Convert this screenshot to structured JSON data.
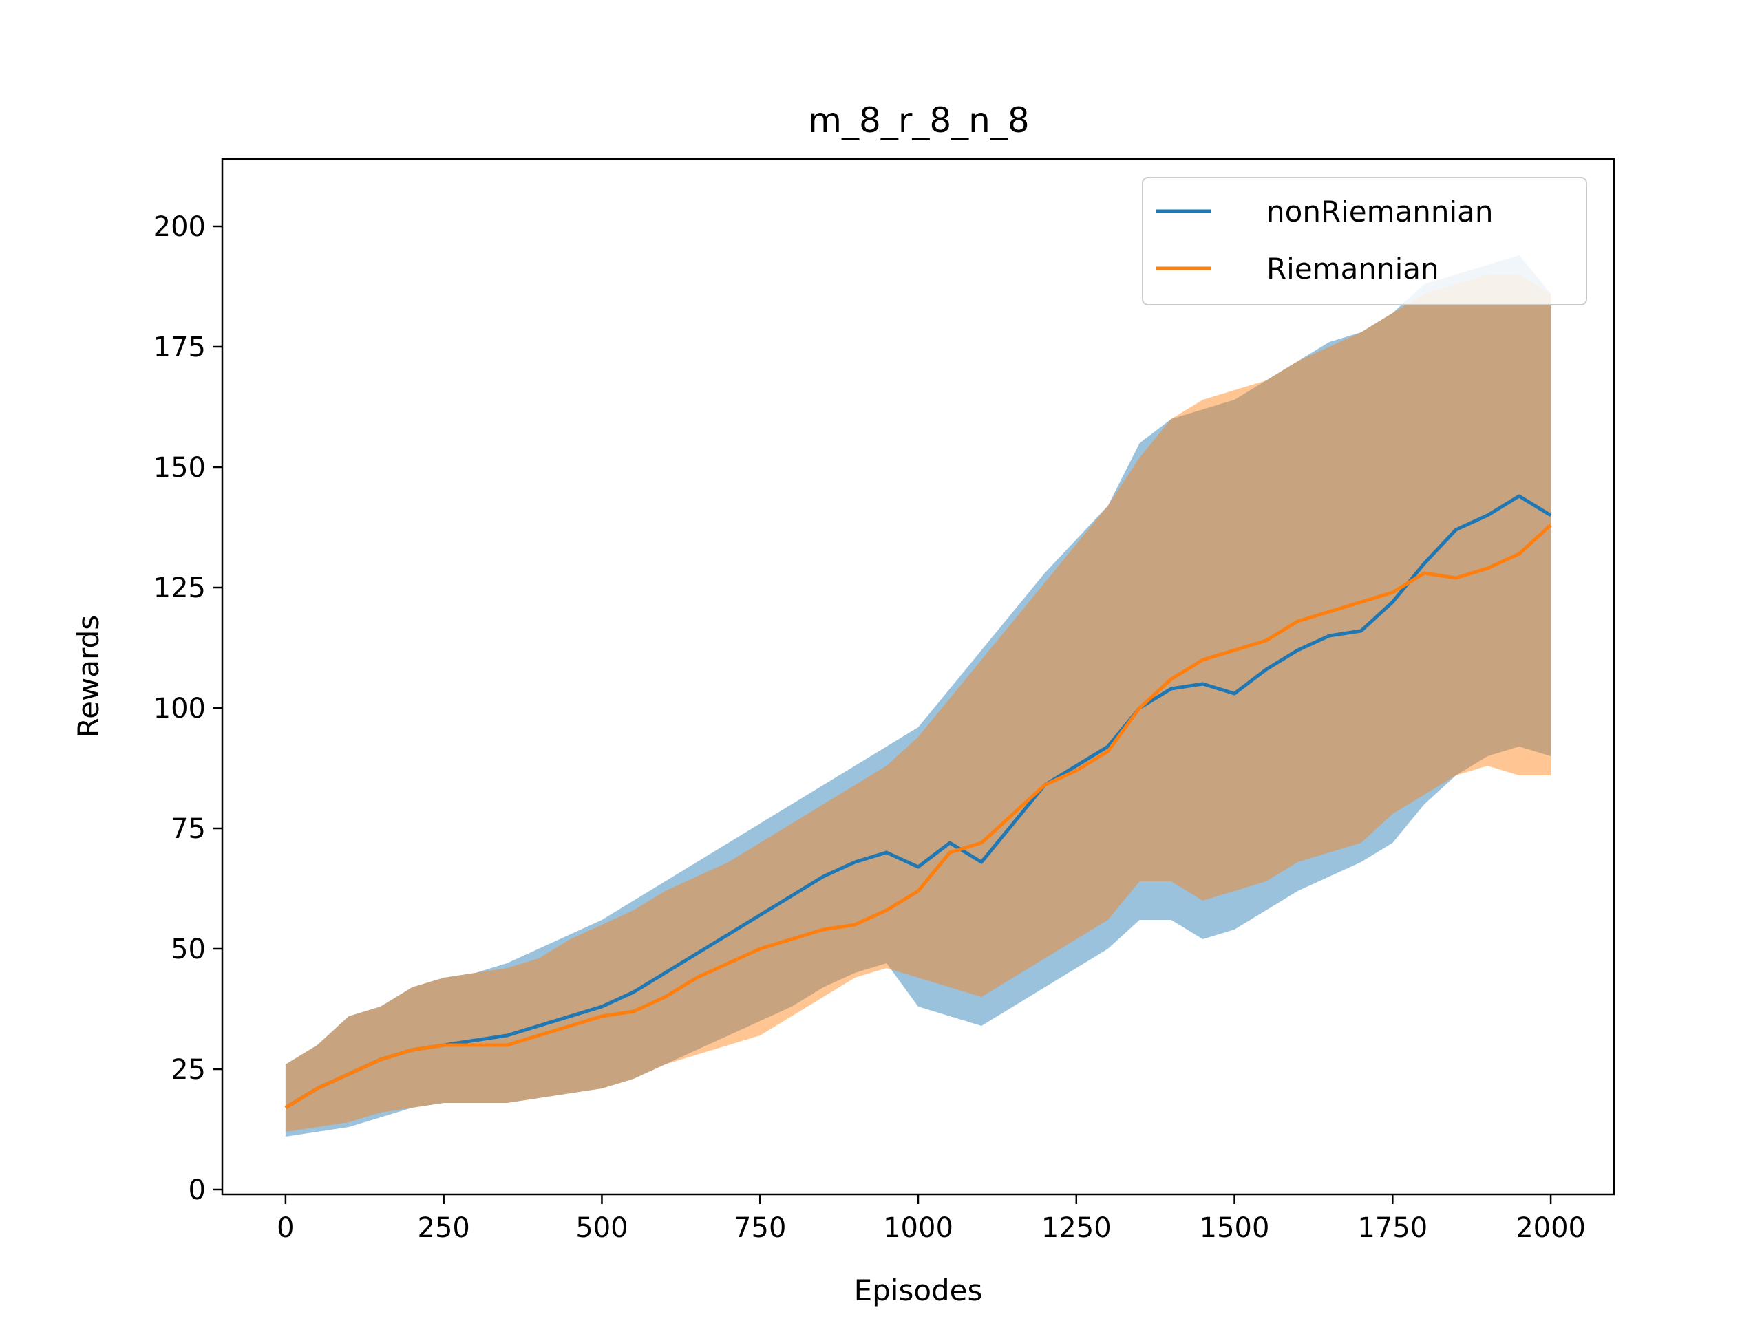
{
  "chart_data": {
    "type": "line",
    "title": "m_8_r_8_n_8",
    "xlabel": "Episodes",
    "ylabel": "Rewards",
    "xlim": [
      -100,
      2100
    ],
    "ylim": [
      -1,
      214
    ],
    "xticks": [
      0,
      250,
      500,
      750,
      1000,
      1250,
      1500,
      1750,
      2000
    ],
    "yticks": [
      0,
      25,
      50,
      75,
      100,
      125,
      150,
      175,
      200
    ],
    "grid": false,
    "legend_position": "top-right",
    "series": [
      {
        "name": "nonRiemannian",
        "color": "#1f77b4",
        "band_color": "#1f77b4",
        "x": [
          0,
          50,
          100,
          150,
          200,
          250,
          300,
          350,
          400,
          450,
          500,
          550,
          600,
          650,
          700,
          750,
          800,
          850,
          900,
          950,
          1000,
          1050,
          1100,
          1150,
          1200,
          1250,
          1300,
          1350,
          1400,
          1450,
          1500,
          1550,
          1600,
          1650,
          1700,
          1750,
          1800,
          1850,
          1900,
          1950,
          2000
        ],
        "mean": [
          17,
          21,
          24,
          27,
          29,
          30,
          31,
          32,
          34,
          36,
          38,
          41,
          45,
          49,
          53,
          57,
          61,
          65,
          68,
          70,
          67,
          72,
          68,
          76,
          84,
          88,
          92,
          100,
          104,
          105,
          103,
          108,
          112,
          115,
          116,
          122,
          130,
          137,
          140,
          144,
          140
        ],
        "upper": [
          26,
          30,
          36,
          38,
          42,
          44,
          45,
          47,
          50,
          53,
          56,
          60,
          64,
          68,
          72,
          76,
          80,
          84,
          88,
          92,
          96,
          104,
          112,
          120,
          128,
          135,
          142,
          155,
          160,
          162,
          164,
          168,
          172,
          176,
          178,
          182,
          188,
          190,
          192,
          194,
          186
        ],
        "lower": [
          11,
          12,
          13,
          15,
          17,
          18,
          18,
          18,
          19,
          20,
          21,
          23,
          26,
          29,
          32,
          35,
          38,
          42,
          45,
          47,
          38,
          36,
          34,
          38,
          42,
          46,
          50,
          56,
          56,
          52,
          54,
          58,
          62,
          65,
          68,
          72,
          80,
          86,
          90,
          92,
          90
        ]
      },
      {
        "name": "Riemannian",
        "color": "#ff7f0e",
        "band_color": "#ff7f0e",
        "x": [
          0,
          50,
          100,
          150,
          200,
          250,
          300,
          350,
          400,
          450,
          500,
          550,
          600,
          650,
          700,
          750,
          800,
          850,
          900,
          950,
          1000,
          1050,
          1100,
          1150,
          1200,
          1250,
          1300,
          1350,
          1400,
          1450,
          1500,
          1550,
          1600,
          1650,
          1700,
          1750,
          1800,
          1850,
          1900,
          1950,
          2000
        ],
        "mean": [
          17,
          21,
          24,
          27,
          29,
          30,
          30,
          30,
          32,
          34,
          36,
          37,
          40,
          44,
          47,
          50,
          52,
          54,
          55,
          58,
          62,
          70,
          72,
          78,
          84,
          87,
          91,
          100,
          106,
          110,
          112,
          114,
          118,
          120,
          122,
          124,
          128,
          127,
          129,
          132,
          138
        ],
        "upper": [
          26,
          30,
          36,
          38,
          42,
          44,
          45,
          46,
          48,
          52,
          55,
          58,
          62,
          65,
          68,
          72,
          76,
          80,
          84,
          88,
          94,
          102,
          110,
          118,
          126,
          134,
          142,
          152,
          160,
          164,
          166,
          168,
          172,
          175,
          178,
          182,
          186,
          188,
          190,
          190,
          186
        ],
        "lower": [
          12,
          13,
          14,
          16,
          17,
          18,
          18,
          18,
          19,
          20,
          21,
          23,
          26,
          28,
          30,
          32,
          36,
          40,
          44,
          46,
          44,
          42,
          40,
          44,
          48,
          52,
          56,
          64,
          64,
          60,
          62,
          64,
          68,
          70,
          72,
          78,
          82,
          86,
          88,
          86,
          86
        ]
      }
    ]
  }
}
